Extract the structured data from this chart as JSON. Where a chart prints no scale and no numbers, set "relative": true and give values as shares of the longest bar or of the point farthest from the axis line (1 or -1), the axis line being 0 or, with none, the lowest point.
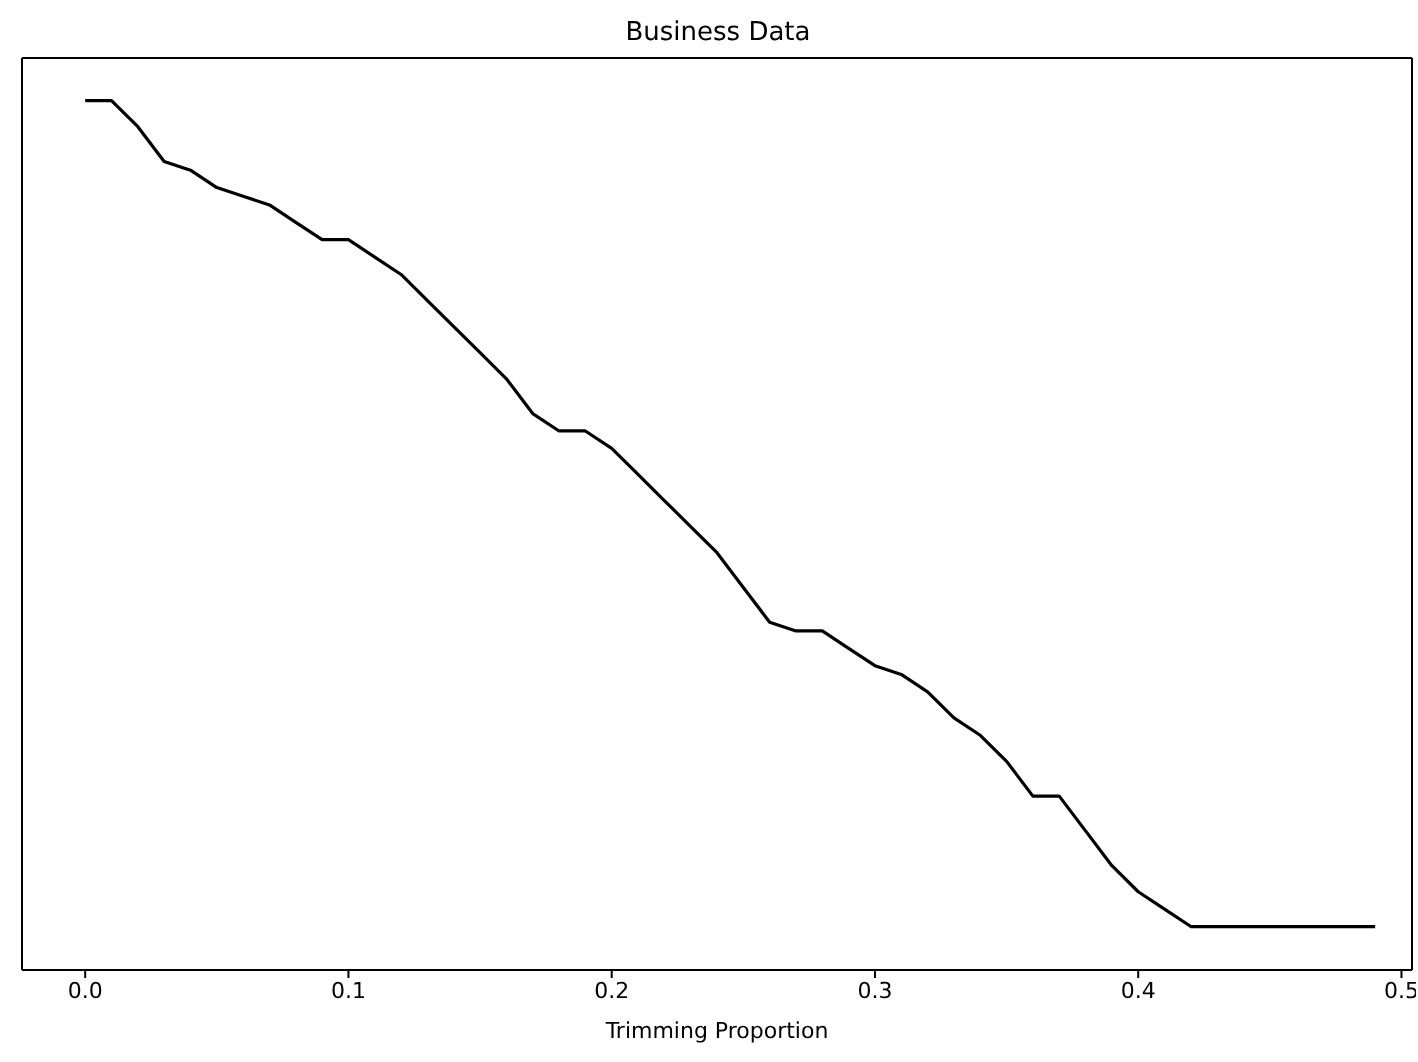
{
  "chart_data": {
    "type": "line",
    "title": "Business Data",
    "xlabel": "Trimming Proportion",
    "relative": true,
    "tick_labels": "x",
    "marker": "none",
    "line_style": "solid",
    "x": [
      0,
      0.01,
      0.02,
      0.03,
      0.04,
      0.05,
      0.06,
      0.07,
      0.08,
      0.09,
      0.1,
      0.11,
      0.12,
      0.13,
      0.14,
      0.15,
      0.16,
      0.17,
      0.18,
      0.19,
      0.2,
      0.21,
      0.22,
      0.23,
      0.24,
      0.25,
      0.26,
      0.27,
      0.28,
      0.29,
      0.3,
      0.31,
      0.32,
      0.33,
      0.34,
      0.35,
      0.36,
      0.37,
      0.38,
      0.39,
      0.4,
      0.41,
      0.42,
      0.43,
      0.44,
      0.45,
      0.46,
      0.47,
      0.48,
      0.49
    ],
    "series": [
      {
        "color": "#000000",
        "values": [
          1,
          1,
          0.97,
          0.93,
          0.92,
          0.9,
          0.89,
          0.88,
          0.86,
          0.84,
          0.84,
          0.82,
          0.8,
          0.77,
          0.74,
          0.71,
          0.68,
          0.64,
          0.62,
          0.62,
          0.6,
          0.57,
          0.54,
          0.51,
          0.48,
          0.44,
          0.4,
          0.39,
          0.39,
          0.37,
          0.35,
          0.34,
          0.32,
          0.29,
          0.27,
          0.24,
          0.2,
          0.2,
          0.16,
          0.12,
          0.09,
          0.07,
          0.05,
          0.05,
          0.05,
          0.05,
          0.05,
          0.05,
          0.05,
          0.05
        ]
      }
    ],
    "xlim": [
      -0.024,
      0.504
    ],
    "xticks": [
      {
        "value": 0,
        "label": "0.0"
      },
      0.1,
      0.2,
      0.3,
      0.4,
      0.5
    ]
  }
}
